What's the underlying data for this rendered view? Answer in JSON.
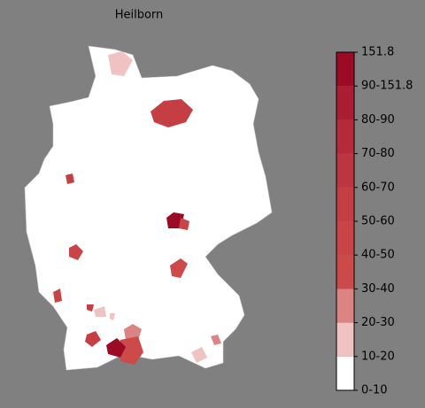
{
  "chart_data": {
    "type": "choropleth",
    "title": "Heilborn",
    "colorbar": {
      "labels": [
        "0-10",
        "10-20",
        "20-30",
        "30-40",
        "40-50",
        "50-60",
        "60-70",
        "70-80",
        "80-90",
        "90-151.8",
        "151.8"
      ],
      "colors": [
        "#ffffff",
        "#f0c2c2",
        "#dc8484",
        "#cc4a4a",
        "#c84446",
        "#c43e43",
        "#bd3540",
        "#b52a3a",
        "#ab1d33",
        "#9c0a26"
      ]
    }
  }
}
